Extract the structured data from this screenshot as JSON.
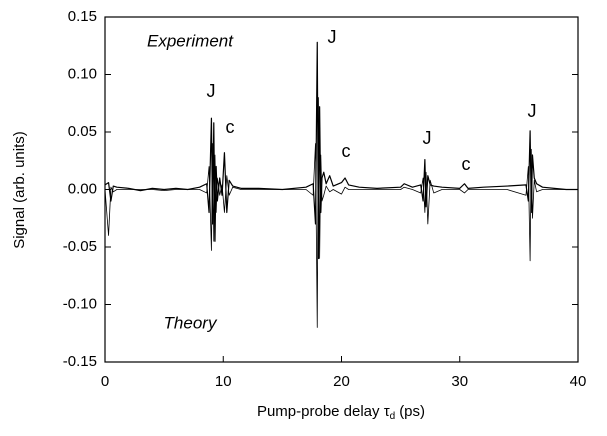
{
  "chart_data": {
    "type": "line",
    "x_label": {
      "main": "Pump-probe delay τ",
      "sub": "d",
      "unit": "(ps)"
    },
    "y_label": "Signal (arb. units)",
    "x": [
      0,
      0.3,
      0.5,
      0.7,
      1,
      2,
      3,
      4,
      5,
      6,
      7,
      8,
      8.6,
      8.8,
      9.0,
      9.1,
      9.2,
      9.3,
      9.4,
      9.5,
      9.7,
      9.9,
      10.1,
      10.3,
      10.5,
      10.8,
      11.5,
      13,
      15,
      17,
      17.6,
      17.8,
      17.95,
      18.05,
      18.15,
      18.25,
      18.35,
      18.5,
      18.7,
      19,
      19.3,
      20,
      20.3,
      20.6,
      21.5,
      23,
      25,
      25.3,
      26,
      26.7,
      26.9,
      27.05,
      27.15,
      27.3,
      27.5,
      27.8,
      28.5,
      30,
      30.4,
      30.7,
      32,
      34,
      35.6,
      35.8,
      35.95,
      36.05,
      36.15,
      36.3,
      36.5,
      37,
      38,
      39,
      40
    ],
    "series": [
      {
        "name": "Experiment",
        "color": "#000000",
        "width": 1.2,
        "values": [
          0.004,
          0.006,
          -0.01,
          0.003,
          0.002,
          0.001,
          -0.001,
          0.001,
          0,
          0.001,
          0,
          0.002,
          0.005,
          -0.02,
          0.062,
          -0.03,
          0.058,
          -0.045,
          0.02,
          -0.01,
          0.01,
          -0.005,
          0.032,
          -0.02,
          0.008,
          0.003,
          0.001,
          0.001,
          0,
          0.002,
          0.005,
          -0.03,
          0.128,
          -0.06,
          0.072,
          -0.02,
          0.01,
          0.015,
          0.005,
          0.012,
          0.003,
          0.006,
          0.01,
          0.004,
          0.002,
          0.001,
          0.002,
          0.005,
          0.002,
          0.004,
          -0.01,
          0.026,
          -0.015,
          0.012,
          0.004,
          0.003,
          0.002,
          0.001,
          0.005,
          0.001,
          0.002,
          0.003,
          0.004,
          -0.01,
          0.051,
          -0.02,
          0.03,
          0.01,
          0.005,
          0.002,
          0.001,
          0,
          0
        ]
      },
      {
        "name": "Theory",
        "color": "#000000",
        "width": 0.8,
        "values": [
          0,
          -0.04,
          0.002,
          -0.002,
          0,
          0,
          0,
          0,
          -0.001,
          0,
          0,
          0,
          -0.003,
          0.02,
          -0.053,
          0.04,
          -0.045,
          0.03,
          -0.02,
          0.01,
          -0.005,
          0.004,
          -0.02,
          0.012,
          -0.005,
          0.002,
          0,
          0,
          0,
          0,
          -0.005,
          0.04,
          -0.12,
          0.08,
          -0.06,
          0.03,
          -0.01,
          -0.005,
          0.003,
          -0.002,
          0,
          -0.004,
          0.002,
          0,
          0,
          0,
          0,
          0.002,
          0,
          -0.003,
          0.01,
          -0.02,
          0.015,
          -0.03,
          0.008,
          -0.003,
          0,
          0,
          -0.003,
          0,
          0,
          0,
          -0.005,
          0.02,
          -0.062,
          0.035,
          -0.025,
          0.008,
          -0.002,
          0,
          0,
          0,
          0
        ]
      }
    ],
    "peak_labels": [
      "J",
      "c",
      "J",
      "c",
      "J",
      "c",
      "J"
    ],
    "xlim": [
      0,
      40
    ],
    "xticks": [
      0,
      10,
      20,
      30,
      40
    ],
    "ylim": [
      -0.15,
      0.15
    ],
    "yticks": [
      -0.15,
      {
        "value": -0.1,
        "label": "-0.10"
      },
      -0.05,
      {
        "value": 0,
        "label": "0.00"
      },
      0.05,
      {
        "value": 0.1,
        "label": "0.10"
      },
      0.15
    ],
    "grid": false
  }
}
